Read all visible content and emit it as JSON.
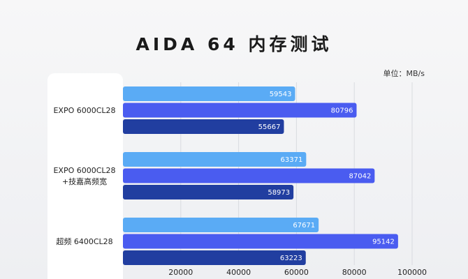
{
  "chart_data": {
    "type": "bar",
    "orientation": "horizontal",
    "title": "AIDA 64 内存测试",
    "unit_label": "单位：MB/s",
    "categories": [
      [
        "EXPO 6000CL28"
      ],
      [
        "EXPO 6000CL28",
        "+技嘉高频宽"
      ],
      [
        "超频 6400CL28"
      ]
    ],
    "series": [
      {
        "values": [
          59543,
          63371,
          67671
        ]
      },
      {
        "values": [
          80796,
          87042,
          95142
        ]
      },
      {
        "values": [
          55667,
          58973,
          63223
        ]
      }
    ],
    "xlim": [
      0,
      100000
    ],
    "xticks": [
      20000,
      40000,
      60000,
      80000,
      100000
    ],
    "grid": true,
    "colors": [
      "#5aabf5",
      "#4a5cf0",
      "#213ea0"
    ]
  }
}
